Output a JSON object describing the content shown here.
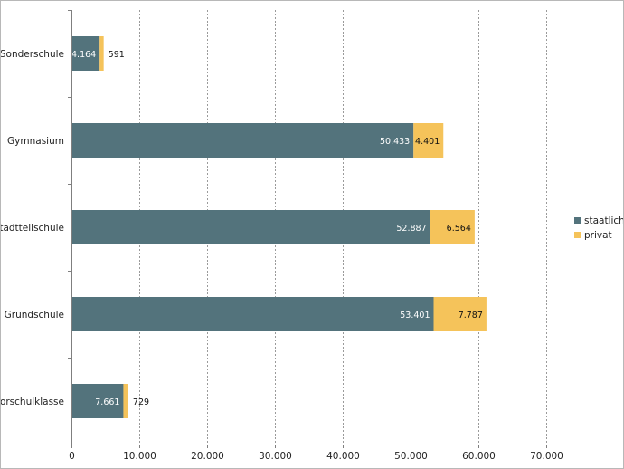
{
  "chart_data": {
    "type": "bar",
    "orientation": "horizontal",
    "stacked": true,
    "categories": [
      "Sonderschule",
      "Gymnasium",
      "Stadtteilschule",
      "Grundschule",
      "Vorschulklasse"
    ],
    "series": [
      {
        "name": "staatlich",
        "values": [
          4164,
          50433,
          52887,
          53401,
          7661
        ],
        "labels": [
          "4.164",
          "50.433",
          "52.887",
          "53.401",
          "7.661"
        ],
        "color": "#53737c"
      },
      {
        "name": "privat",
        "values": [
          591,
          4401,
          6564,
          7787,
          729
        ],
        "labels": [
          "591",
          "4.401",
          "6.564",
          "7.787",
          "729"
        ],
        "color": "#f5c35a"
      }
    ],
    "xlim": [
      0,
      70000
    ],
    "xticks": [
      0,
      10000,
      20000,
      30000,
      40000,
      50000,
      60000,
      70000
    ],
    "xtick_labels": [
      "0",
      "10.000",
      "20.000",
      "30.000",
      "40.000",
      "50.000",
      "60.000",
      "70.000"
    ],
    "grid": "vertical dotted",
    "legend": "right"
  }
}
